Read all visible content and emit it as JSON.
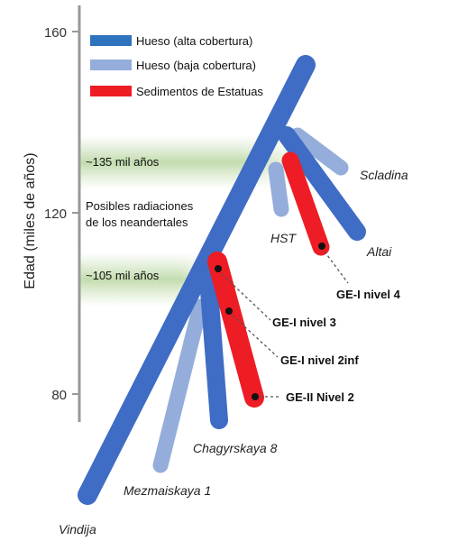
{
  "axis": {
    "title": "Edad (miles de años)",
    "ticks": [
      "160",
      "120",
      "80"
    ]
  },
  "legend": {
    "items": [
      {
        "label": "Hueso (alta cobertura)",
        "color": "#2e73bd"
      },
      {
        "label": "Hueso (baja cobertura)",
        "color": "#94addb"
      },
      {
        "label": "Sedimentos de Estatuas",
        "color": "#ee1c24"
      }
    ]
  },
  "bands": {
    "band_135": "~135 mil años",
    "band_105": "~105 mil años",
    "radiation_line1": "Posibles radiaciones",
    "radiation_line2": "de los neandertales"
  },
  "branches": {
    "scladina": "Scladina",
    "hst": "HST",
    "altai": "Altai",
    "chagyrskaya": "Chagyrskaya 8",
    "mezmaiskaya": "Mezmaiskaya 1",
    "vindija": "Vindija"
  },
  "samples": {
    "ge1_nivel4": "GE-I nivel 4",
    "ge1_nivel3": "GE-I nivel 3",
    "ge1_nivel2inf": "GE-I nivel 2inf",
    "ge2_nivel2": "GE-II Nivel 2"
  }
}
